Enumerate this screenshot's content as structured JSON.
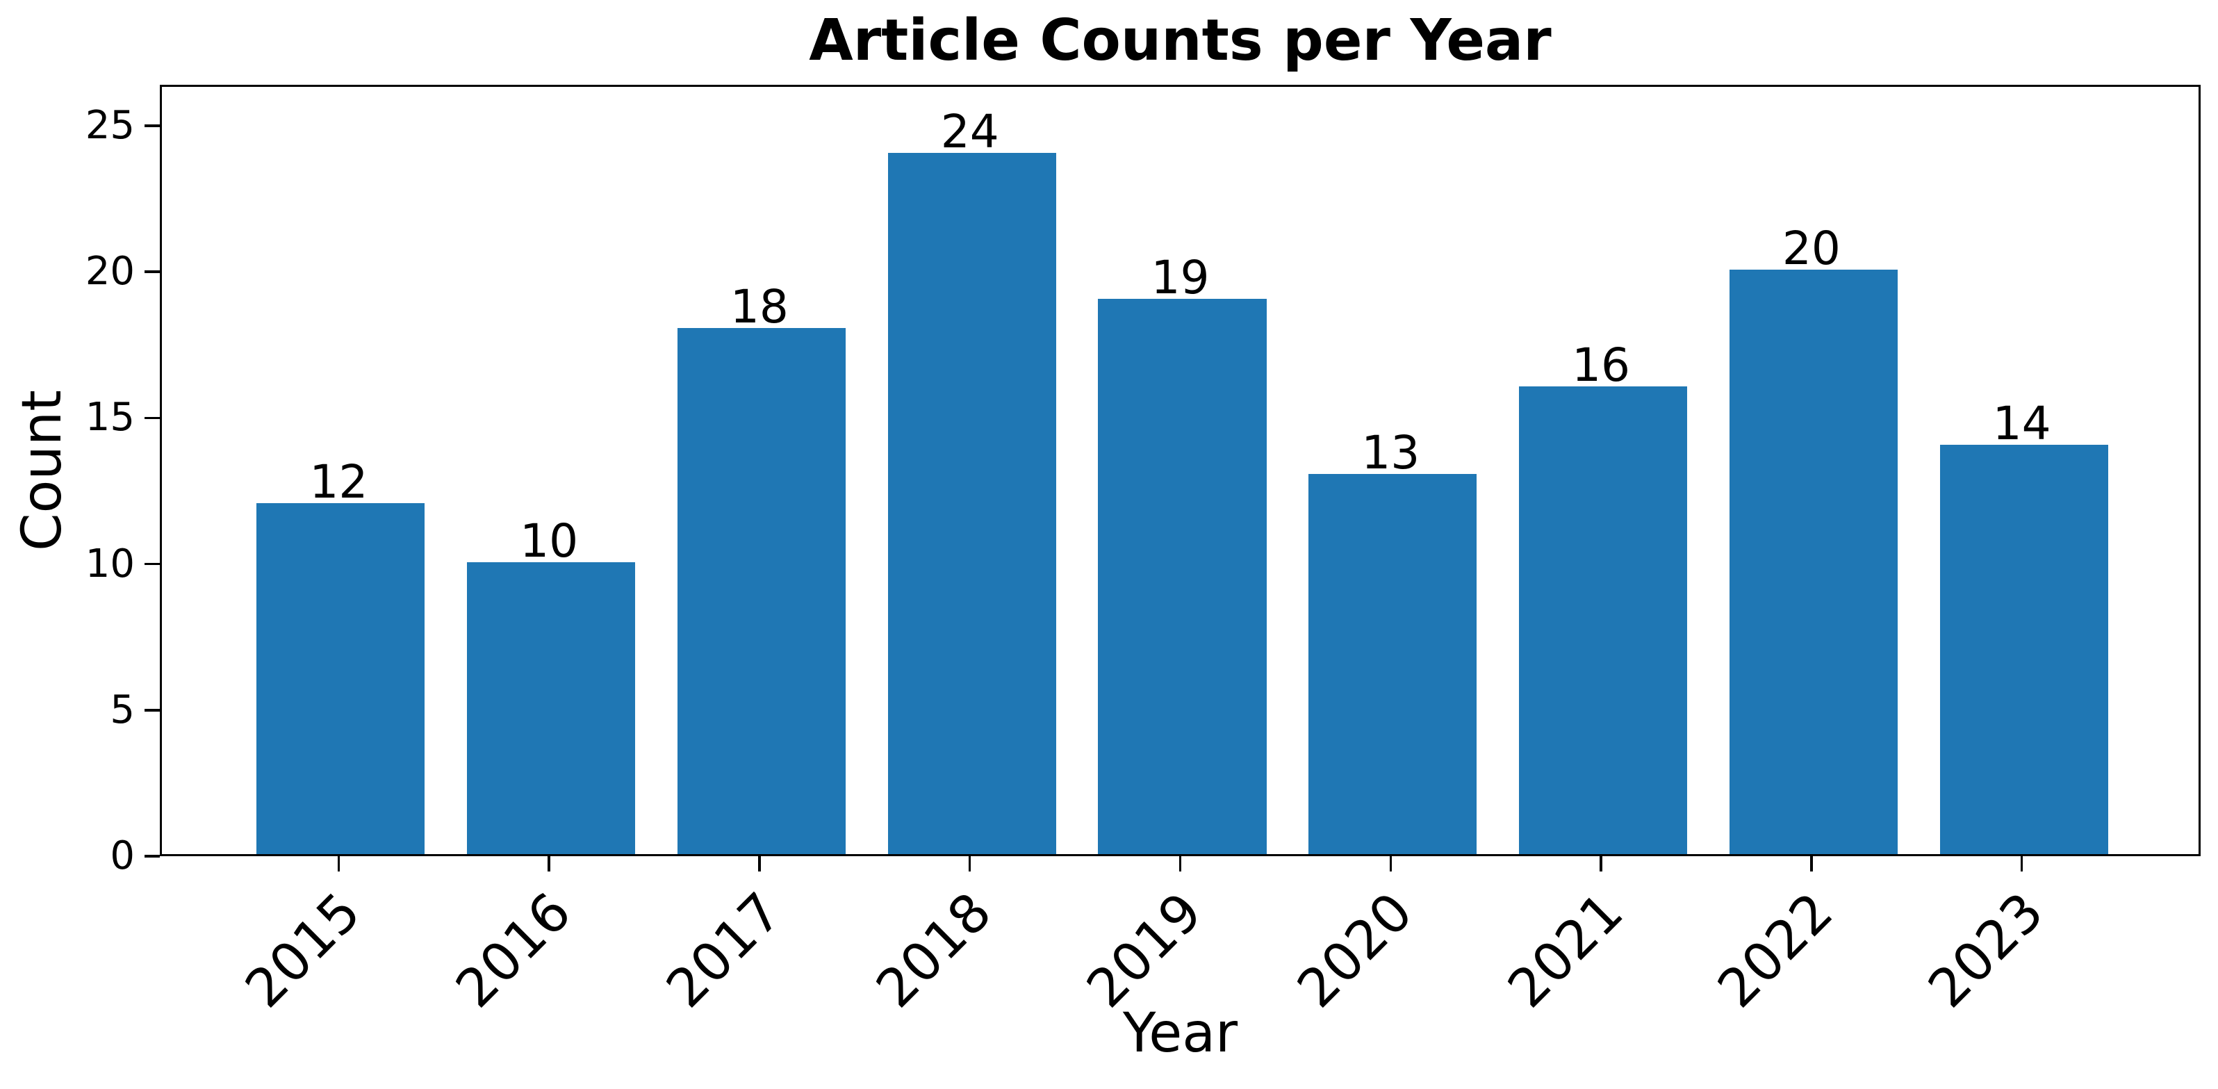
{
  "figure": {
    "background": "#ffffff"
  },
  "chart_data": {
    "type": "bar",
    "title": "Article Counts per Year",
    "xlabel": "Year",
    "ylabel": "Count",
    "categories": [
      "2015",
      "2016",
      "2017",
      "2018",
      "2019",
      "2020",
      "2021",
      "2022",
      "2023"
    ],
    "values": [
      12,
      10,
      18,
      24,
      19,
      13,
      16,
      20,
      14
    ],
    "bar_value_labels": [
      "12",
      "10",
      "18",
      "24",
      "19",
      "13",
      "16",
      "20",
      "14"
    ],
    "yticks": [
      0,
      5,
      10,
      15,
      20,
      25
    ],
    "ylim": [
      0,
      26.4
    ],
    "x_tick_rotation_deg": 45,
    "grid": false,
    "legend": null,
    "bar_color": "#1f77b4",
    "text_color": "#000000",
    "spine_color": "#000000"
  }
}
